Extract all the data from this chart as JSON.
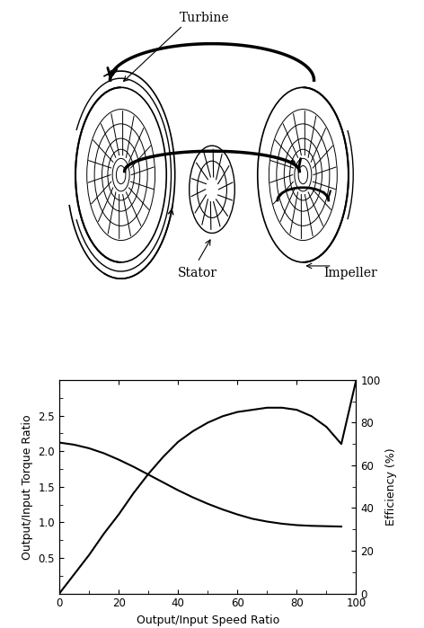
{
  "torque_ratio_x": [
    0,
    5,
    10,
    15,
    20,
    25,
    30,
    35,
    40,
    45,
    50,
    55,
    60,
    65,
    70,
    75,
    80,
    85,
    90,
    95
  ],
  "torque_ratio_y": [
    2.12,
    2.09,
    2.04,
    1.97,
    1.88,
    1.78,
    1.67,
    1.56,
    1.45,
    1.35,
    1.26,
    1.18,
    1.11,
    1.05,
    1.01,
    0.98,
    0.96,
    0.95,
    0.945,
    0.94
  ],
  "efficiency_x": [
    0,
    5,
    10,
    15,
    20,
    25,
    30,
    35,
    40,
    45,
    50,
    55,
    60,
    65,
    70,
    75,
    80,
    85,
    90,
    95,
    100
  ],
  "efficiency_y": [
    0,
    9,
    18,
    28,
    37,
    47,
    56,
    64,
    71,
    76,
    80,
    83,
    85,
    86,
    87,
    87,
    86,
    83,
    78,
    70,
    100
  ],
  "xlabel": "Output/Input Speed Ratio",
  "ylabel_left": "Output/Input Torque Ratio",
  "ylabel_right": "Efficiency (%)",
  "xlim": [
    0,
    100
  ],
  "ylim_left": [
    0,
    3.0
  ],
  "ylim_right": [
    0,
    100
  ],
  "xticks": [
    0,
    20,
    40,
    60,
    80,
    100
  ],
  "yticks_left": [
    0.5,
    1.0,
    1.5,
    2.0,
    2.5
  ],
  "yticks_right": [
    0,
    20,
    40,
    60,
    80,
    100
  ],
  "line_color": "#000000",
  "bg_color": "#ffffff",
  "fig_width": 4.72,
  "fig_height": 6.99,
  "label_turbine": "Turbine",
  "label_stator": "Stator",
  "label_impeller": "Impeller"
}
